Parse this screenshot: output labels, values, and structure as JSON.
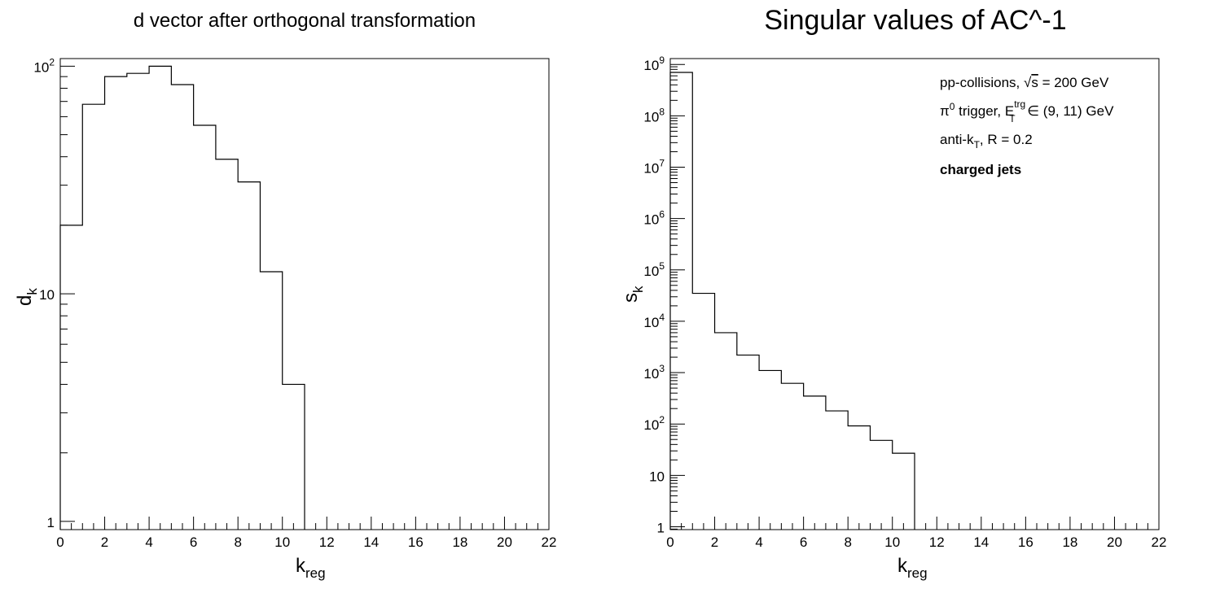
{
  "chart_data": [
    {
      "type": "histogram",
      "title": "d vector after orthogonal transformation",
      "xlabel": "k",
      "xlabel_sub": "reg",
      "ylabel": "d",
      "ylabel_sub": "k",
      "xlim": [
        0,
        22
      ],
      "ylim": [
        0.92,
        108
      ],
      "ylog": true,
      "grid": false,
      "bin_edges": [
        0,
        1,
        2,
        3,
        4,
        5,
        6,
        7,
        8,
        9,
        10,
        11
      ],
      "values": [
        20,
        68,
        90,
        93,
        100,
        83,
        55,
        39,
        31,
        12.5,
        4.0
      ],
      "x_ticks": [
        0,
        2,
        4,
        6,
        8,
        10,
        12,
        14,
        16,
        18,
        20,
        22
      ],
      "x_tick_labels": [
        "0",
        "2",
        "4",
        "6",
        "8",
        "10",
        "12",
        "14",
        "16",
        "18",
        "20",
        "22"
      ],
      "y_major": [
        {
          "value": 1,
          "base": "1",
          "exp": ""
        },
        {
          "value": 10,
          "base": "10",
          "exp": ""
        },
        {
          "value": 100,
          "base": "10",
          "exp": "2"
        }
      ]
    },
    {
      "type": "histogram",
      "title": "Singular values of AC^-1",
      "xlabel": "k",
      "xlabel_sub": "reg",
      "ylabel": "s",
      "ylabel_sub": "k",
      "xlim": [
        0,
        22
      ],
      "ylim": [
        0.88,
        1300000000
      ],
      "ylog": true,
      "grid": false,
      "bin_edges": [
        0,
        1,
        2,
        3,
        4,
        5,
        6,
        7,
        8,
        9,
        10,
        11
      ],
      "values": [
        700000000,
        35000,
        6000,
        2200,
        1100,
        620,
        350,
        180,
        92,
        48,
        27
      ],
      "x_ticks": [
        0,
        2,
        4,
        6,
        8,
        10,
        12,
        14,
        16,
        18,
        20,
        22
      ],
      "x_tick_labels": [
        "0",
        "2",
        "4",
        "6",
        "8",
        "10",
        "12",
        "14",
        "16",
        "18",
        "20",
        "22"
      ],
      "y_major": [
        {
          "value": 1,
          "base": "1",
          "exp": ""
        },
        {
          "value": 10,
          "base": "10",
          "exp": ""
        },
        {
          "value": 100,
          "base": "10",
          "exp": "2"
        },
        {
          "value": 1000,
          "base": "10",
          "exp": "3"
        },
        {
          "value": 10000,
          "base": "10",
          "exp": "4"
        },
        {
          "value": 100000,
          "base": "10",
          "exp": "5"
        },
        {
          "value": 1000000,
          "base": "10",
          "exp": "6"
        },
        {
          "value": 10000000,
          "base": "10",
          "exp": "7"
        },
        {
          "value": 100000000,
          "base": "10",
          "exp": "8"
        },
        {
          "value": 1000000000,
          "base": "10",
          "exp": "9"
        }
      ],
      "annotations": {
        "line1_prefix": "pp-collisions, ",
        "line1_sqrt": "√",
        "line1_s": "s",
        "line1_rest": " = 200 GeV",
        "line2_pi": "π",
        "line2_pi_sup": "0",
        "line2_mid": " trigger, E",
        "line2_sup": "trg",
        "line2_sub": "T",
        "line2_rest": " ∈ (9, 11) GeV",
        "line3_prefix": "anti-k",
        "line3_sub": "T",
        "line3_rest": ", R = 0.2",
        "line4": "charged jets"
      }
    }
  ]
}
